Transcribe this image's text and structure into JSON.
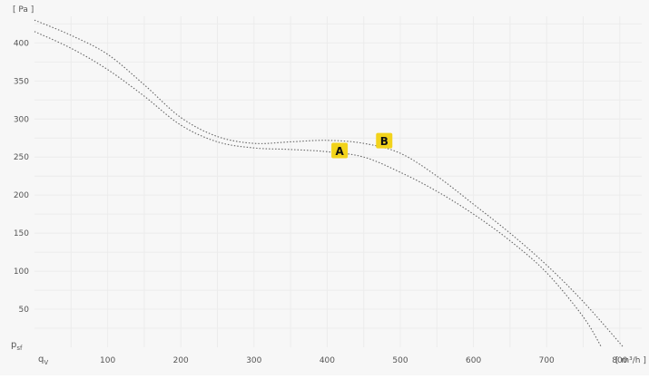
{
  "chart_data": {
    "type": "line",
    "title": "",
    "ylabel_unit": "[ Pa ]",
    "xlabel_unit": "[ m³/h ]",
    "y_axis_symbol": "p",
    "y_axis_symbol_sub": "sf",
    "x_axis_symbol": "q",
    "x_axis_symbol_sub": "V",
    "xlim": [
      0,
      830
    ],
    "ylim": [
      0,
      435
    ],
    "x_ticks": [
      100,
      200,
      300,
      400,
      500,
      600,
      700,
      800
    ],
    "y_ticks": [
      50,
      100,
      150,
      200,
      250,
      300,
      350,
      400
    ],
    "grid": true,
    "series": [
      {
        "marker_label": "A",
        "marker_point": [
          417,
          258
        ],
        "points": [
          [
            0,
            415
          ],
          [
            50,
            393
          ],
          [
            100,
            365
          ],
          [
            150,
            330
          ],
          [
            200,
            292
          ],
          [
            250,
            270
          ],
          [
            300,
            262
          ],
          [
            350,
            260
          ],
          [
            400,
            257
          ],
          [
            450,
            250
          ],
          [
            500,
            230
          ],
          [
            550,
            205
          ],
          [
            600,
            175
          ],
          [
            650,
            140
          ],
          [
            700,
            98
          ],
          [
            750,
            40
          ],
          [
            775,
            0
          ]
        ]
      },
      {
        "marker_label": "B",
        "marker_point": [
          478,
          271
        ],
        "points": [
          [
            0,
            430
          ],
          [
            50,
            410
          ],
          [
            100,
            385
          ],
          [
            150,
            345
          ],
          [
            200,
            302
          ],
          [
            250,
            277
          ],
          [
            300,
            268
          ],
          [
            350,
            270
          ],
          [
            400,
            272
          ],
          [
            450,
            268
          ],
          [
            500,
            255
          ],
          [
            550,
            225
          ],
          [
            600,
            188
          ],
          [
            650,
            150
          ],
          [
            700,
            108
          ],
          [
            750,
            60
          ],
          [
            805,
            0
          ]
        ]
      }
    ],
    "marker_color": "#f2d31b",
    "curve_color": "#666666",
    "grid_color": "#ececec",
    "background": "#f7f7f7"
  }
}
